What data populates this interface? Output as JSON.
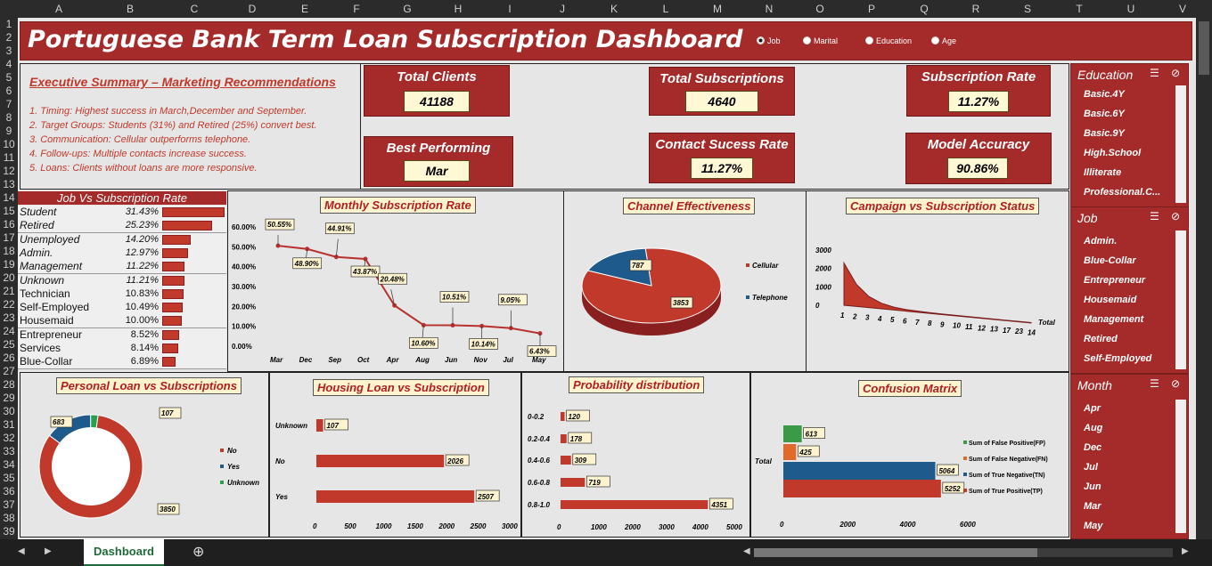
{
  "sheet": {
    "columns": [
      "A",
      "B",
      "C",
      "D",
      "E",
      "F",
      "G",
      "H",
      "I",
      "J",
      "K",
      "L",
      "M",
      "N",
      "O",
      "P",
      "Q",
      "R",
      "S",
      "T",
      "U",
      "V"
    ],
    "rows": [
      "1",
      "2",
      "3",
      "4",
      "5",
      "6",
      "7",
      "8",
      "9",
      "10",
      "11",
      "12",
      "13",
      "14",
      "15",
      "16",
      "17",
      "18",
      "19",
      "20",
      "21",
      "22",
      "23",
      "24",
      "25",
      "26",
      "27",
      "28",
      "29",
      "30",
      "31",
      "32",
      "33",
      "34",
      "35",
      "36",
      "37",
      "38",
      "39"
    ],
    "tab_name": "Dashboard",
    "add_sheet_icon": "plus-circle-icon"
  },
  "title": "Portuguese Bank Term Loan Subscription Dashboard",
  "radio_options": [
    {
      "label": "Job",
      "selected": true
    },
    {
      "label": "Marital",
      "selected": false
    },
    {
      "label": "Education",
      "selected": false
    },
    {
      "label": "Age",
      "selected": false
    }
  ],
  "summary": {
    "heading": "Executive Summary – Marketing Recommendations",
    "items": [
      "1.  Timing: Highest success in March,December and September.",
      "2.  Target Groups: Students (31%) and Retired (25%) convert best.",
      "3.  Communication: Cellular outperforms telephone.",
      "4.  Follow-ups: Multiple contacts increase success.",
      "5.  Loans: Clients without loans are more responsive."
    ]
  },
  "kpis": {
    "total_clients": {
      "label": "Total Clients",
      "value": "41188"
    },
    "total_subscriptions": {
      "label": "Total Subscriptions",
      "value": "4640"
    },
    "subscription_rate": {
      "label": "Subscription Rate",
      "value": "11.27%"
    },
    "best_performing": {
      "label": "Best Performing",
      "value": "Mar"
    },
    "contact_success_rate": {
      "label": "Contact Sucess Rate",
      "value": "11.27%"
    },
    "model_accuracy": {
      "label": "Model Accuracy",
      "value": "90.86%"
    }
  },
  "job_table": {
    "title": "Job Vs Subscription Rate",
    "rows": [
      {
        "job": "Student",
        "rate": "31.43%",
        "value": 31.43,
        "italic": true
      },
      {
        "job": "Retired",
        "rate": "25.23%",
        "value": 25.23,
        "italic": true
      },
      {
        "job": "Unemployed",
        "rate": "14.20%",
        "value": 14.2,
        "italic": true
      },
      {
        "job": "Admin.",
        "rate": "12.97%",
        "value": 12.97,
        "italic": true
      },
      {
        "job": "Management",
        "rate": "11.22%",
        "value": 11.22,
        "italic": true
      },
      {
        "job": "Unknown",
        "rate": "11.21%",
        "value": 11.21,
        "italic": true
      },
      {
        "job": "Technician",
        "rate": "10.83%",
        "value": 10.83,
        "italic": false
      },
      {
        "job": "Self-Employed",
        "rate": "10.49%",
        "value": 10.49,
        "italic": false
      },
      {
        "job": "Housemaid",
        "rate": "10.00%",
        "value": 10.0,
        "italic": false
      },
      {
        "job": "Entrepreneur",
        "rate": "8.52%",
        "value": 8.52,
        "italic": false
      },
      {
        "job": "Services",
        "rate": "8.14%",
        "value": 8.14,
        "italic": false
      },
      {
        "job": "Blue-Collar",
        "rate": "6.89%",
        "value": 6.89,
        "italic": false
      }
    ]
  },
  "chart_data": [
    {
      "id": "monthly",
      "type": "line",
      "title": "Monthly Subscription Rate",
      "categories": [
        "Mar",
        "Dec",
        "Sep",
        "Oct",
        "Apr",
        "Aug",
        "Jun",
        "Nov",
        "Jul",
        "May"
      ],
      "values": [
        50.55,
        48.9,
        44.91,
        43.87,
        20.48,
        10.6,
        10.51,
        10.14,
        9.05,
        6.43
      ],
      "labels": [
        "50.55%",
        "48.90%",
        "44.91%",
        "43.87%",
        "20.48%",
        "10.60%",
        "10.51%",
        "10.14%",
        "9.05%",
        "6.43%"
      ],
      "yticks": [
        "0.00%",
        "10.00%",
        "20.00%",
        "30.00%",
        "40.00%",
        "50.00%",
        "60.00%"
      ],
      "ylim": [
        0,
        60
      ],
      "color": "#b8312f"
    },
    {
      "id": "channel",
      "type": "pie",
      "title": "Channel Effectiveness",
      "categories": [
        "Cellular",
        "Telephone"
      ],
      "values": [
        3853,
        787
      ],
      "colors": [
        "#c0392b",
        "#1f5a8c"
      ]
    },
    {
      "id": "campaign",
      "type": "area",
      "title": "Campaign vs Subscription Status",
      "categories": [
        "1",
        "2",
        "3",
        "4",
        "5",
        "6",
        "7",
        "8",
        "9",
        "10",
        "11",
        "12",
        "13",
        "17",
        "23",
        "14"
      ],
      "values": [
        2300,
        1200,
        600,
        300,
        150,
        80,
        50,
        30,
        20,
        15,
        10,
        8,
        5,
        3,
        1,
        0
      ],
      "yticks": [
        "0",
        "1000",
        "2000",
        "3000"
      ],
      "ylim": [
        0,
        3000
      ],
      "legend": "Total",
      "color": "#c0392b"
    },
    {
      "id": "personal_loan",
      "type": "pie",
      "title": "Personal Loan vs Subscriptions",
      "categories": [
        "No",
        "Yes",
        "Unknown"
      ],
      "values": [
        3850,
        683,
        107
      ],
      "colors": [
        "#c0392b",
        "#1f5a8c",
        "#27a14f"
      ]
    },
    {
      "id": "housing_loan",
      "type": "bar",
      "title": "Housing Loan vs Subscription",
      "categories": [
        "Unknown",
        "No",
        "Yes"
      ],
      "values": [
        107,
        2026,
        2507
      ],
      "xticks": [
        "0",
        "500",
        "1000",
        "1500",
        "2000",
        "2500",
        "3000"
      ],
      "xlim": [
        0,
        3000
      ],
      "color": "#c0392b"
    },
    {
      "id": "probability",
      "type": "bar",
      "title": "Probability distribution",
      "categories": [
        "0-0.2",
        "0.2-0.4",
        "0.4-0.6",
        "0.6-0.8",
        "0.8-1.0"
      ],
      "values": [
        120,
        178,
        309,
        719,
        4351
      ],
      "xticks": [
        "0",
        "1000",
        "2000",
        "3000",
        "4000",
        "5000"
      ],
      "xlim": [
        0,
        5000
      ],
      "color": "#c0392b"
    },
    {
      "id": "confusion",
      "type": "bar",
      "title": "Confusion Matrix",
      "categories": [
        "Total"
      ],
      "series": [
        {
          "name": "Sum of False Positive(FP)",
          "value": 613,
          "color": "#3a9a47"
        },
        {
          "name": "Sum of False Negative(FN)",
          "value": 425,
          "color": "#e06a2a"
        },
        {
          "name": "Sum of True Negative(TN)",
          "value": 5064,
          "color": "#1f5a8c"
        },
        {
          "name": "Sum of True Positive(TP)",
          "value": 5252,
          "color": "#c0392b"
        }
      ],
      "xticks": [
        "0",
        "2000",
        "4000",
        "6000"
      ],
      "xlim": [
        0,
        6000
      ]
    }
  ],
  "slicers": {
    "filter_icon": "multi-select-icon",
    "clear_icon": "clear-filter-icon",
    "education": {
      "title": "Education",
      "items": [
        "Basic.4Y",
        "Basic.6Y",
        "Basic.9Y",
        "High.School",
        "Illiterate",
        "Professional.C..."
      ]
    },
    "job": {
      "title": "Job",
      "items": [
        "Admin.",
        "Blue-Collar",
        "Entrepreneur",
        "Housemaid",
        "Management",
        "Retired",
        "Self-Employed"
      ]
    },
    "month": {
      "title": "Month",
      "items": [
        "Apr",
        "Aug",
        "Dec",
        "Jul",
        "Jun",
        "Mar",
        "May"
      ]
    }
  }
}
